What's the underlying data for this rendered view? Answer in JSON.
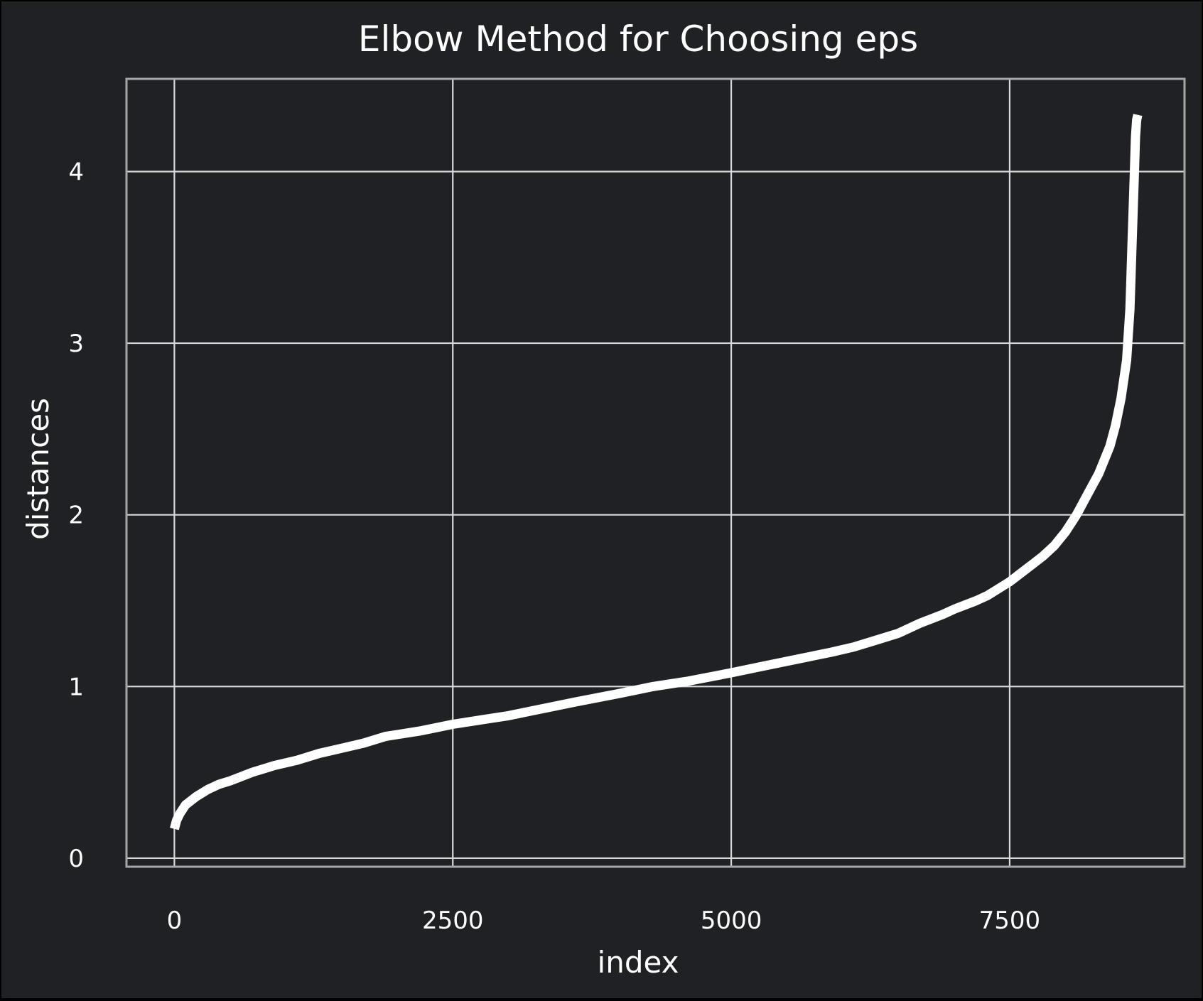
{
  "chart_data": {
    "type": "line",
    "title": "Elbow Method for Choosing eps",
    "xlabel": "index",
    "ylabel": "distances",
    "xlim": [
      -430,
      9070
    ],
    "ylim": [
      -0.05,
      4.54
    ],
    "xticks": [
      0,
      2500,
      5000,
      7500
    ],
    "yticks": [
      0,
      1,
      2,
      3,
      4
    ],
    "grid": true,
    "legend": "none",
    "colors": {
      "background": "#202124",
      "line": "#ffffff",
      "grid": "#d9d9d9",
      "frame": "#a6a6a6",
      "text": "#ffffff"
    },
    "series": [
      {
        "x": [
          0,
          20,
          50,
          100,
          200,
          300,
          400,
          500,
          700,
          900,
          1100,
          1300,
          1500,
          1700,
          1900,
          2000,
          2200,
          2500,
          2800,
          3000,
          3300,
          3600,
          4000,
          4300,
          4600,
          5000,
          5300,
          5600,
          5900,
          6100,
          6300,
          6500,
          6700,
          6900,
          7000,
          7200,
          7300,
          7500,
          7600,
          7700,
          7800,
          7900,
          8000,
          8100,
          8200,
          8300,
          8400,
          8450,
          8500,
          8550,
          8580,
          8600,
          8620,
          8630,
          8640,
          8650
        ],
        "y": [
          0.17,
          0.22,
          0.26,
          0.31,
          0.36,
          0.4,
          0.43,
          0.45,
          0.5,
          0.54,
          0.57,
          0.61,
          0.64,
          0.67,
          0.71,
          0.72,
          0.74,
          0.78,
          0.81,
          0.83,
          0.87,
          0.91,
          0.96,
          1.0,
          1.03,
          1.08,
          1.12,
          1.16,
          1.2,
          1.23,
          1.27,
          1.31,
          1.37,
          1.42,
          1.45,
          1.5,
          1.53,
          1.61,
          1.66,
          1.71,
          1.76,
          1.82,
          1.9,
          2.0,
          2.12,
          2.24,
          2.4,
          2.52,
          2.68,
          2.9,
          3.2,
          3.6,
          4.0,
          4.2,
          4.3,
          4.33
        ]
      }
    ]
  }
}
